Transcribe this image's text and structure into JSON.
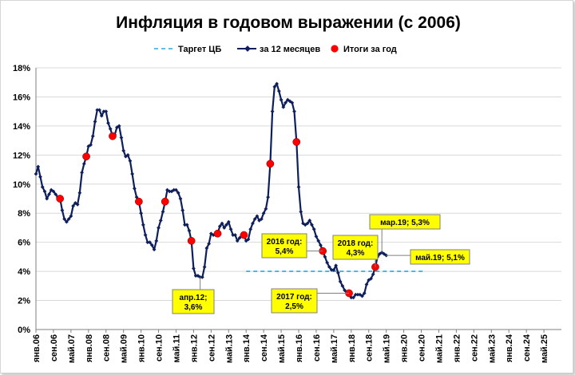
{
  "chart_data": {
    "type": "line",
    "title": "Инфляция в годовом выражении (с 2006)",
    "y_axis": {
      "min": 0,
      "max": 18,
      "step": 2,
      "tick_labels": [
        "0%",
        "2%",
        "4%",
        "6%",
        "8%",
        "10%",
        "12%",
        "14%",
        "16%",
        "18%"
      ]
    },
    "x_axis": {
      "start": "2006-01",
      "end": "2026-01",
      "tick_labels": [
        "янв.06",
        "сен.06",
        "май.07",
        "янв.08",
        "сен.08",
        "май.09",
        "янв.10",
        "сен.10",
        "май.11",
        "янв.12",
        "сен.12",
        "май.13",
        "янв.14",
        "сен.14",
        "май.15",
        "янв.16",
        "сен.16",
        "май.17",
        "янв.18",
        "сен.18",
        "май.19",
        "янв.20",
        "сен.20",
        "май.21",
        "янв.22",
        "сен.22",
        "май.23",
        "янв.24",
        "сен.24",
        "май.25"
      ]
    },
    "legend": {
      "placement": "top",
      "items": [
        {
          "label": "Таргет ЦБ",
          "style": "dashed",
          "color": "#29a8e0"
        },
        {
          "label": "за 12 месяцев",
          "style": "line-marker",
          "color": "#0e1f5b"
        },
        {
          "label": "Итоги за год",
          "style": "dot",
          "color": "#ff0000"
        }
      ]
    },
    "series": [
      {
        "name": "за 12 месяцев",
        "color": "#0e1f5b",
        "points": [
          [
            "2006-01",
            10.7
          ],
          [
            "2006-02",
            11.2
          ],
          [
            "2006-03",
            10.5
          ],
          [
            "2006-04",
            9.8
          ],
          [
            "2006-05",
            9.5
          ],
          [
            "2006-06",
            9.0
          ],
          [
            "2006-07",
            9.3
          ],
          [
            "2006-08",
            9.6
          ],
          [
            "2006-09",
            9.5
          ],
          [
            "2006-10",
            9.3
          ],
          [
            "2006-11",
            9.1
          ],
          [
            "2006-12",
            9.0
          ],
          [
            "2007-01",
            8.2
          ],
          [
            "2007-02",
            7.6
          ],
          [
            "2007-03",
            7.4
          ],
          [
            "2007-04",
            7.6
          ],
          [
            "2007-05",
            7.8
          ],
          [
            "2007-06",
            8.5
          ],
          [
            "2007-07",
            8.7
          ],
          [
            "2007-08",
            8.6
          ],
          [
            "2007-09",
            9.4
          ],
          [
            "2007-10",
            10.8
          ],
          [
            "2007-11",
            11.4
          ],
          [
            "2007-12",
            11.9
          ],
          [
            "2008-01",
            12.6
          ],
          [
            "2008-02",
            12.7
          ],
          [
            "2008-03",
            13.3
          ],
          [
            "2008-04",
            14.3
          ],
          [
            "2008-05",
            15.1
          ],
          [
            "2008-06",
            15.1
          ],
          [
            "2008-07",
            14.7
          ],
          [
            "2008-08",
            15.0
          ],
          [
            "2008-09",
            15.0
          ],
          [
            "2008-10",
            14.2
          ],
          [
            "2008-11",
            13.8
          ],
          [
            "2008-12",
            13.3
          ],
          [
            "2009-01",
            13.4
          ],
          [
            "2009-02",
            13.9
          ],
          [
            "2009-03",
            14.0
          ],
          [
            "2009-04",
            13.2
          ],
          [
            "2009-05",
            12.3
          ],
          [
            "2009-06",
            11.9
          ],
          [
            "2009-07",
            12.0
          ],
          [
            "2009-08",
            11.6
          ],
          [
            "2009-09",
            10.7
          ],
          [
            "2009-10",
            9.7
          ],
          [
            "2009-11",
            9.1
          ],
          [
            "2009-12",
            8.8
          ],
          [
            "2010-01",
            8.0
          ],
          [
            "2010-02",
            7.2
          ],
          [
            "2010-03",
            6.5
          ],
          [
            "2010-04",
            6.0
          ],
          [
            "2010-05",
            6.0
          ],
          [
            "2010-06",
            5.8
          ],
          [
            "2010-07",
            5.5
          ],
          [
            "2010-08",
            6.1
          ],
          [
            "2010-09",
            7.0
          ],
          [
            "2010-10",
            7.5
          ],
          [
            "2010-11",
            8.1
          ],
          [
            "2010-12",
            8.8
          ],
          [
            "2011-01",
            9.6
          ],
          [
            "2011-02",
            9.5
          ],
          [
            "2011-03",
            9.5
          ],
          [
            "2011-04",
            9.6
          ],
          [
            "2011-05",
            9.6
          ],
          [
            "2011-06",
            9.4
          ],
          [
            "2011-07",
            9.0
          ],
          [
            "2011-08",
            8.2
          ],
          [
            "2011-09",
            7.2
          ],
          [
            "2011-10",
            7.2
          ],
          [
            "2011-11",
            6.8
          ],
          [
            "2011-12",
            6.1
          ],
          [
            "2012-01",
            4.2
          ],
          [
            "2012-02",
            3.7
          ],
          [
            "2012-03",
            3.7
          ],
          [
            "2012-04",
            3.6
          ],
          [
            "2012-05",
            3.6
          ],
          [
            "2012-06",
            4.3
          ],
          [
            "2012-07",
            5.6
          ],
          [
            "2012-08",
            5.9
          ],
          [
            "2012-09",
            6.6
          ],
          [
            "2012-10",
            6.5
          ],
          [
            "2012-11",
            6.5
          ],
          [
            "2012-12",
            6.6
          ],
          [
            "2013-01",
            7.1
          ],
          [
            "2013-02",
            7.3
          ],
          [
            "2013-03",
            7.0
          ],
          [
            "2013-04",
            7.2
          ],
          [
            "2013-05",
            7.4
          ],
          [
            "2013-06",
            6.9
          ],
          [
            "2013-07",
            6.5
          ],
          [
            "2013-08",
            6.5
          ],
          [
            "2013-09",
            6.1
          ],
          [
            "2013-10",
            6.3
          ],
          [
            "2013-11",
            6.5
          ],
          [
            "2013-12",
            6.5
          ],
          [
            "2014-01",
            6.1
          ],
          [
            "2014-02",
            6.2
          ],
          [
            "2014-03",
            6.9
          ],
          [
            "2014-04",
            7.3
          ],
          [
            "2014-05",
            7.6
          ],
          [
            "2014-06",
            7.8
          ],
          [
            "2014-07",
            7.5
          ],
          [
            "2014-08",
            7.6
          ],
          [
            "2014-09",
            8.0
          ],
          [
            "2014-10",
            8.3
          ],
          [
            "2014-11",
            9.1
          ],
          [
            "2014-12",
            11.4
          ],
          [
            "2015-01",
            15.0
          ],
          [
            "2015-02",
            16.7
          ],
          [
            "2015-03",
            16.9
          ],
          [
            "2015-04",
            16.4
          ],
          [
            "2015-05",
            15.8
          ],
          [
            "2015-06",
            15.3
          ],
          [
            "2015-07",
            15.6
          ],
          [
            "2015-08",
            15.8
          ],
          [
            "2015-09",
            15.7
          ],
          [
            "2015-10",
            15.6
          ],
          [
            "2015-11",
            15.0
          ],
          [
            "2015-12",
            12.9
          ],
          [
            "2016-01",
            9.8
          ],
          [
            "2016-02",
            8.1
          ],
          [
            "2016-03",
            7.3
          ],
          [
            "2016-04",
            7.2
          ],
          [
            "2016-05",
            7.3
          ],
          [
            "2016-06",
            7.5
          ],
          [
            "2016-07",
            7.2
          ],
          [
            "2016-08",
            6.9
          ],
          [
            "2016-09",
            6.4
          ],
          [
            "2016-10",
            6.1
          ],
          [
            "2016-11",
            5.8
          ],
          [
            "2016-12",
            5.4
          ],
          [
            "2017-01",
            5.0
          ],
          [
            "2017-02",
            4.6
          ],
          [
            "2017-03",
            4.3
          ],
          [
            "2017-04",
            4.1
          ],
          [
            "2017-05",
            4.1
          ],
          [
            "2017-06",
            4.4
          ],
          [
            "2017-07",
            3.9
          ],
          [
            "2017-08",
            3.3
          ],
          [
            "2017-09",
            3.0
          ],
          [
            "2017-10",
            2.7
          ],
          [
            "2017-11",
            2.5
          ],
          [
            "2017-12",
            2.5
          ],
          [
            "2018-01",
            2.2
          ],
          [
            "2018-02",
            2.2
          ],
          [
            "2018-03",
            2.4
          ],
          [
            "2018-04",
            2.4
          ],
          [
            "2018-05",
            2.4
          ],
          [
            "2018-06",
            2.3
          ],
          [
            "2018-07",
            2.5
          ],
          [
            "2018-08",
            3.1
          ],
          [
            "2018-09",
            3.4
          ],
          [
            "2018-10",
            3.5
          ],
          [
            "2018-11",
            3.8
          ],
          [
            "2018-12",
            4.3
          ],
          [
            "2019-01",
            5.0
          ],
          [
            "2019-02",
            5.2
          ],
          [
            "2019-03",
            5.3
          ],
          [
            "2019-04",
            5.2
          ],
          [
            "2019-05",
            5.1
          ]
        ]
      },
      {
        "name": "Итоги за год",
        "color": "#ff0000",
        "points": [
          [
            "2006-12",
            9.0
          ],
          [
            "2007-12",
            11.9
          ],
          [
            "2008-12",
            13.3
          ],
          [
            "2009-12",
            8.8
          ],
          [
            "2010-12",
            8.8
          ],
          [
            "2011-12",
            6.1
          ],
          [
            "2012-12",
            6.6
          ],
          [
            "2013-12",
            6.5
          ],
          [
            "2014-12",
            11.4
          ],
          [
            "2015-12",
            12.9
          ],
          [
            "2016-12",
            5.4
          ],
          [
            "2017-12",
            2.5
          ],
          [
            "2018-12",
            4.3
          ]
        ]
      },
      {
        "name": "Таргет ЦБ",
        "color": "#29a8e0",
        "points": [
          [
            "2014-01",
            4.0
          ],
          [
            "2020-10",
            4.0
          ]
        ]
      }
    ],
    "annotations": [
      {
        "lines": [
          "апр.12;",
          "3,6%"
        ],
        "x": "2012-04",
        "y": 3.6
      },
      {
        "lines": [
          "2016 год:",
          "5,4%"
        ],
        "x": "2016-12",
        "y": 5.4
      },
      {
        "lines": [
          "2017 год:",
          "2,5%"
        ],
        "x": "2017-12",
        "y": 2.5
      },
      {
        "lines": [
          "2018 год:",
          "4,3%"
        ],
        "x": "2018-12",
        "y": 4.3
      },
      {
        "lines": [
          "мар.19; 5,3%"
        ],
        "x": "2019-03",
        "y": 5.3
      },
      {
        "lines": [
          "май.19; 5,1%"
        ],
        "x": "2019-05",
        "y": 5.1
      }
    ],
    "grid": {
      "horizontal": true,
      "vertical": false
    }
  }
}
